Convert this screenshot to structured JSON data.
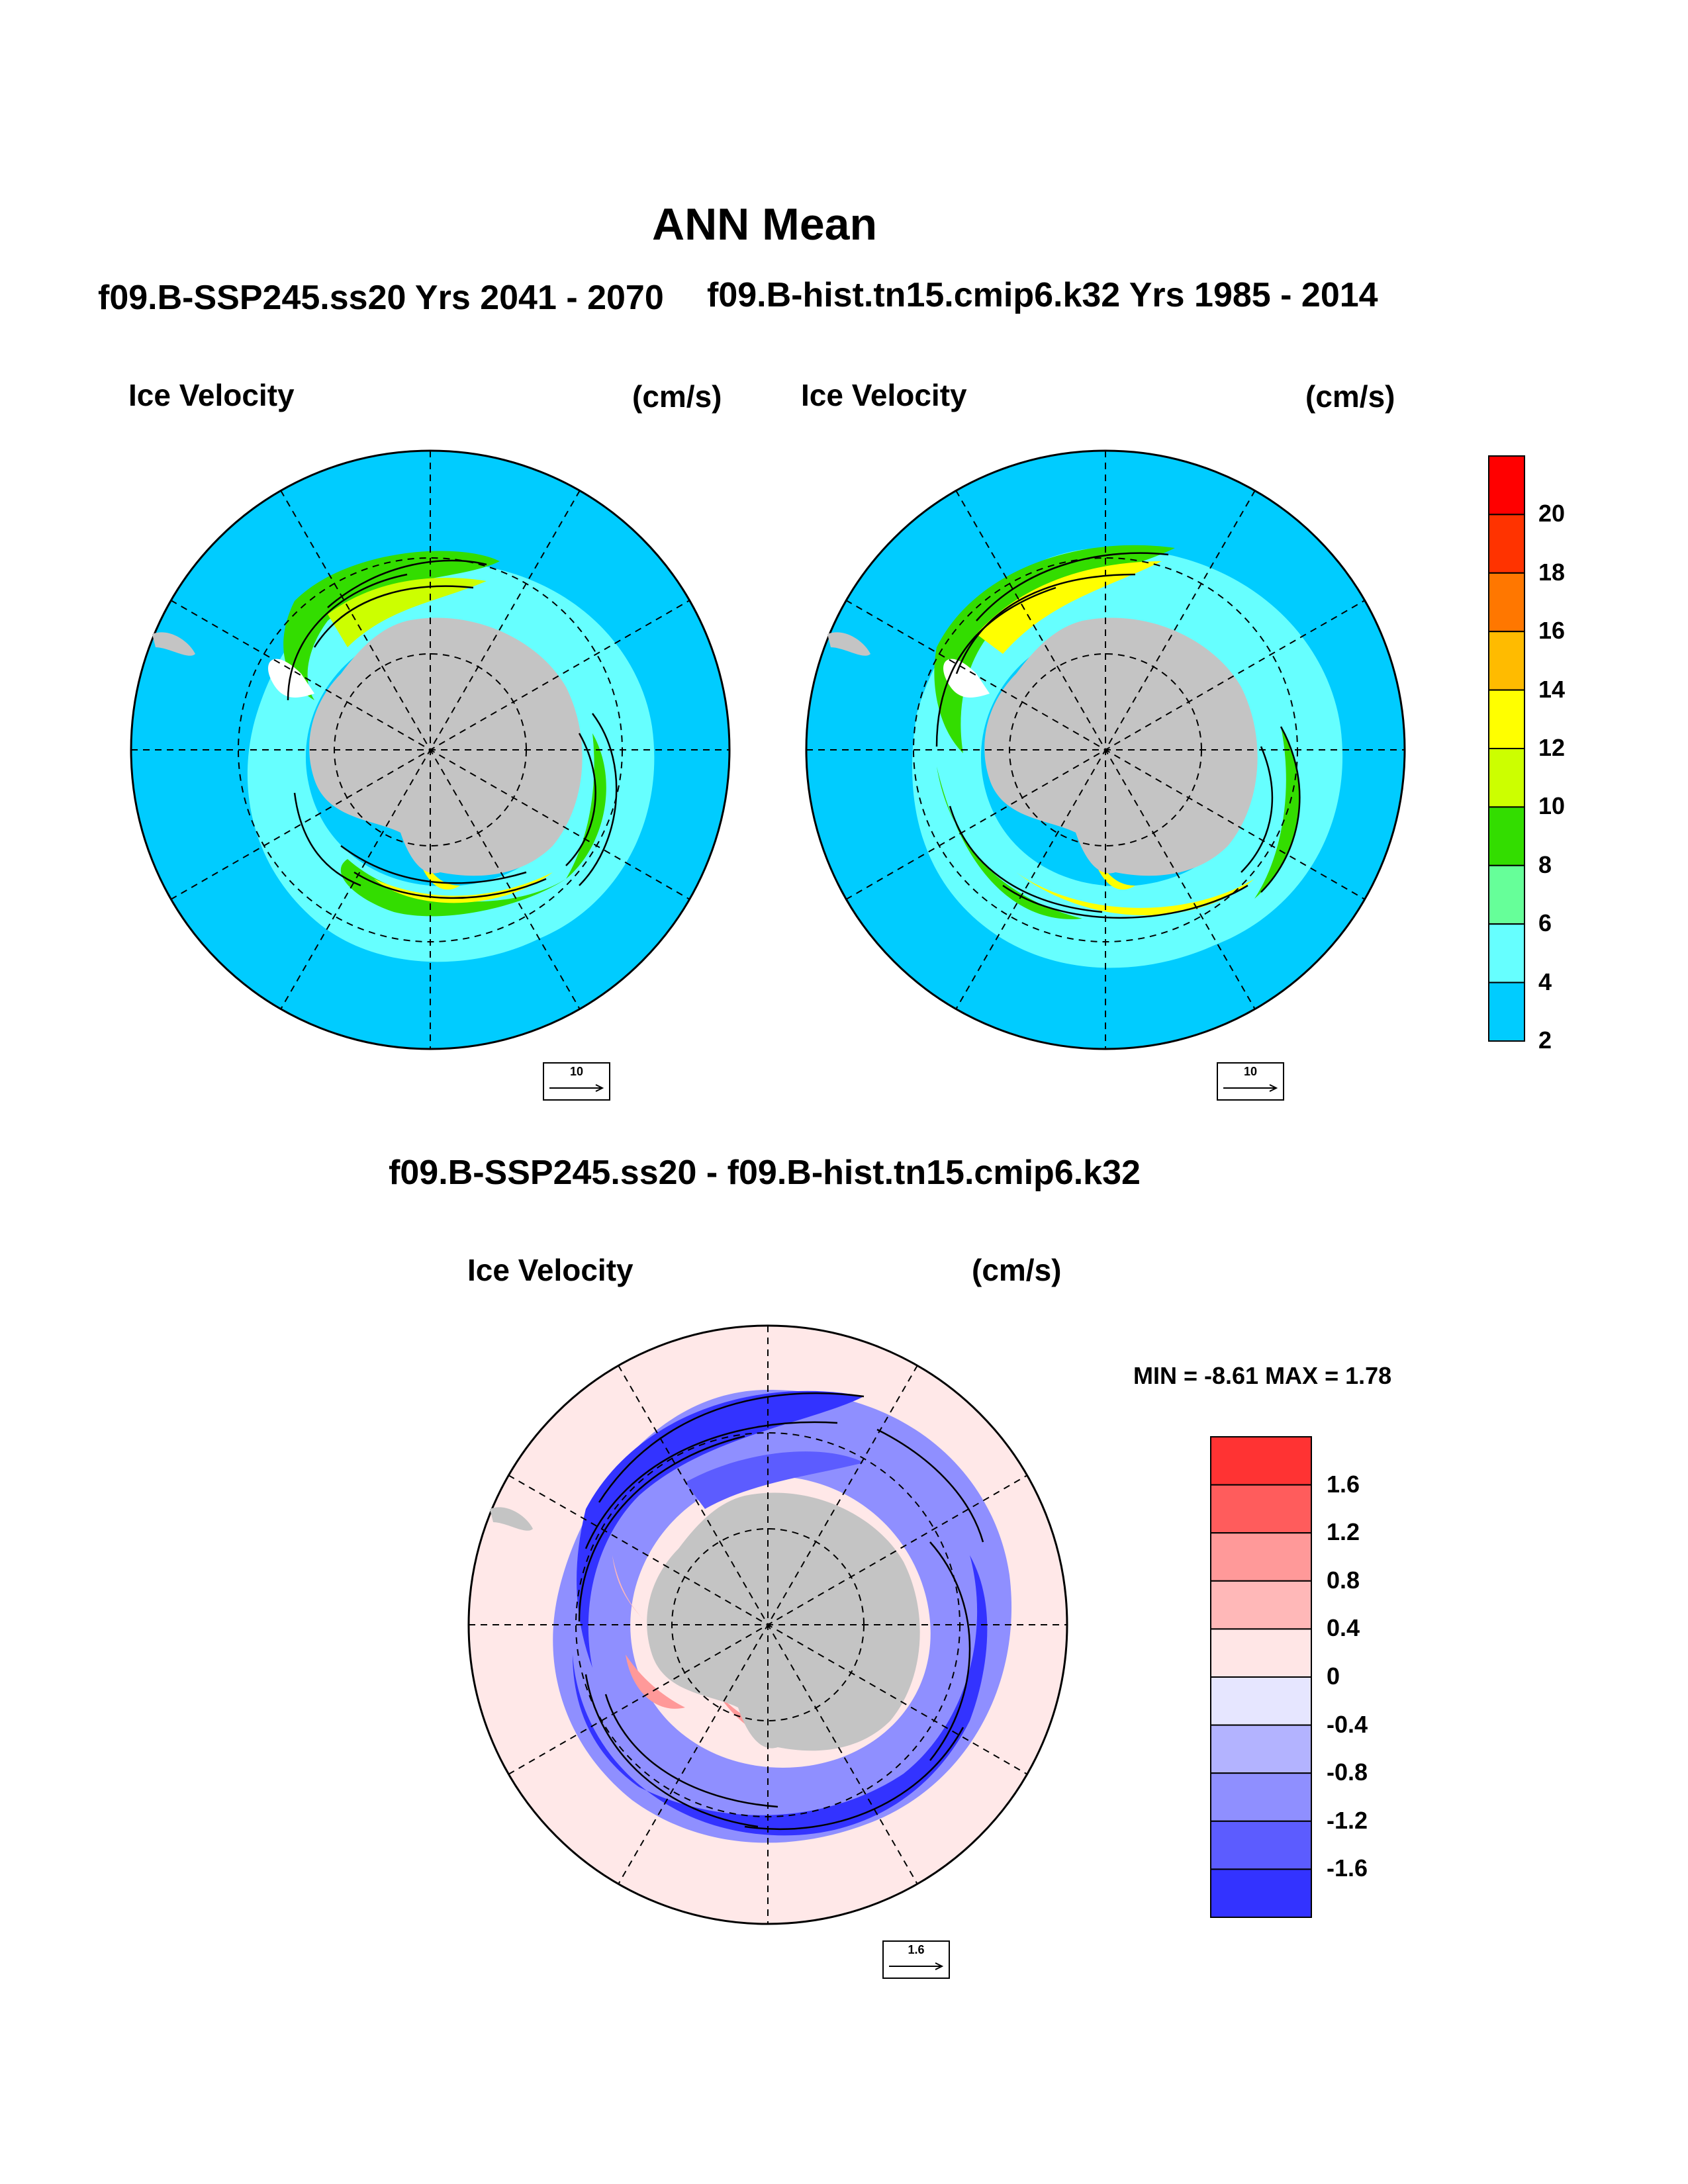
{
  "title": "ANN Mean",
  "panels": [
    {
      "case": "f09.B-SSP245.ss20  Yrs 2041 - 2070",
      "variable": "Ice Velocity",
      "units": "(cm/s)",
      "ref_vector": "10"
    },
    {
      "case": "f09.B-hist.tn15.cmip6.k32  Yrs 1985 - 2014",
      "variable": "Ice Velocity",
      "units": "(cm/s)",
      "ref_vector": "10"
    }
  ],
  "diff_panel": {
    "case": "f09.B-SSP245.ss20 - f09.B-hist.tn15.cmip6.k32",
    "variable": "Ice Velocity",
    "units": "(cm/s)",
    "stats": "MIN =  -8.61 MAX =   1.78",
    "ref_vector": "1.6"
  },
  "colorbar_speed": {
    "labels": [
      "20",
      "18",
      "16",
      "14",
      "12",
      "10",
      "8",
      "6",
      "4",
      "2"
    ],
    "colors": [
      "#ff0000",
      "#ff3300",
      "#ff7700",
      "#ffbb00",
      "#ffff00",
      "#ccff00",
      "#33dd00",
      "#66ff99",
      "#66ffff",
      "#00ccff"
    ]
  },
  "colorbar_diff": {
    "labels": [
      "1.6",
      "1.2",
      "0.8",
      "0.4",
      "0",
      "-0.4",
      "-0.8",
      "-1.2",
      "-1.6"
    ],
    "colors": [
      "#ff3333",
      "#ff5c5c",
      "#ff9999",
      "#ffb8b8",
      "#ffe6e6",
      "#e6e6ff",
      "#b3b3ff",
      "#8f8fff",
      "#5c5cff",
      "#3333ff"
    ]
  },
  "map_colors": {
    "ocean": "#00ccff",
    "land": "#c4c4c4",
    "diff_bg": "#ffe8e8"
  }
}
